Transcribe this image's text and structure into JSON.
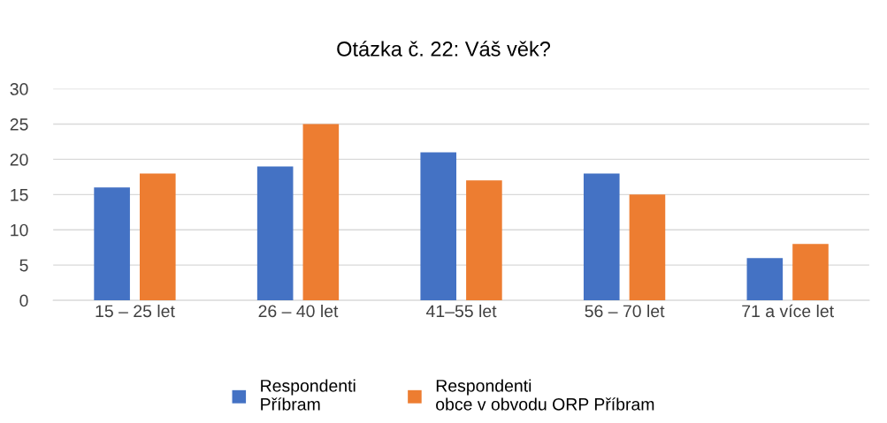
{
  "chart_data": {
    "type": "bar",
    "title": "Otázka č. 22: Váš věk?",
    "categories": [
      "15 – 25 let",
      "26 – 40 let",
      "41–55 let",
      "56 – 70 let",
      "71 a více let"
    ],
    "series": [
      {
        "name": "Respondenti\nPříbram",
        "color": "#4472c4",
        "values": [
          16,
          19,
          21,
          18,
          6
        ]
      },
      {
        "name": "Respondenti\nobce v obvodu ORP Příbram",
        "color": "#ed7d31",
        "values": [
          18,
          25,
          17,
          15,
          8
        ]
      }
    ],
    "ylim": [
      0,
      30
    ],
    "yticks": [
      0,
      5,
      10,
      15,
      20,
      25,
      30
    ],
    "grid": "y",
    "legend": "bottom"
  }
}
